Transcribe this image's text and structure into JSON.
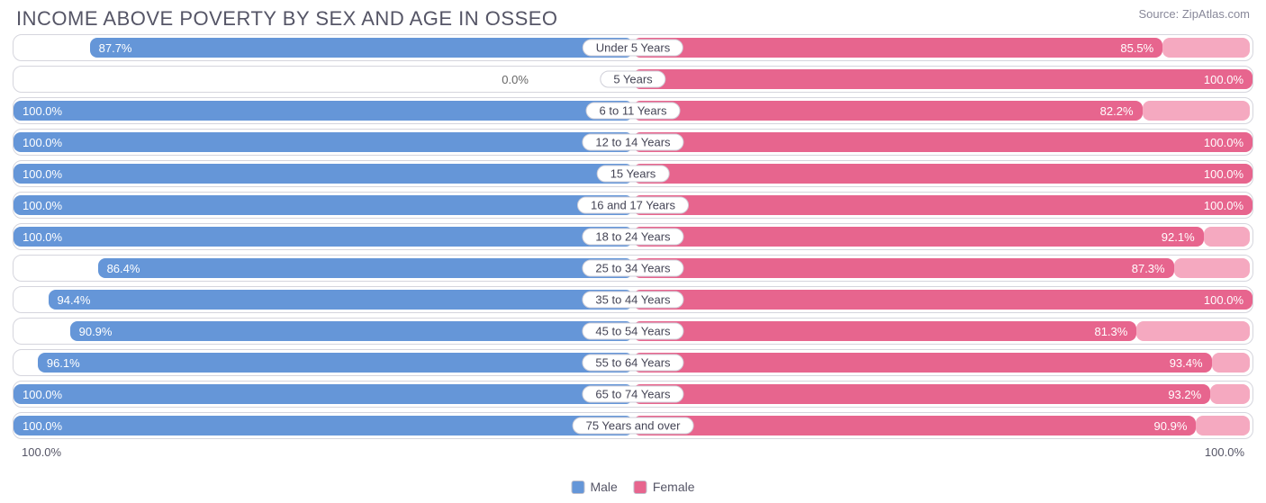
{
  "title": "INCOME ABOVE POVERTY BY SEX AND AGE IN OSSEO",
  "source": "Source: ZipAtlas.com",
  "colors": {
    "male": "#6596d8",
    "male_light": "#a9c6eb",
    "female": "#e7658e",
    "female_light": "#f5a9c0",
    "border": "#d5d5dd",
    "text": "#555566"
  },
  "axis": {
    "left": "100.0%",
    "right": "100.0%"
  },
  "legend": {
    "male": "Male",
    "female": "Female"
  },
  "rows": [
    {
      "label": "Under 5 Years",
      "male": 87.7,
      "male_txt": "87.7%",
      "female": 85.5,
      "female_txt": "85.5%"
    },
    {
      "label": "5 Years",
      "male": 0.0,
      "male_txt": "0.0%",
      "female": 100.0,
      "female_txt": "100.0%",
      "male_light": true
    },
    {
      "label": "6 to 11 Years",
      "male": 100.0,
      "male_txt": "100.0%",
      "female": 82.2,
      "female_txt": "82.2%"
    },
    {
      "label": "12 to 14 Years",
      "male": 100.0,
      "male_txt": "100.0%",
      "female": 100.0,
      "female_txt": "100.0%"
    },
    {
      "label": "15 Years",
      "male": 100.0,
      "male_txt": "100.0%",
      "female": 100.0,
      "female_txt": "100.0%"
    },
    {
      "label": "16 and 17 Years",
      "male": 100.0,
      "male_txt": "100.0%",
      "female": 100.0,
      "female_txt": "100.0%"
    },
    {
      "label": "18 to 24 Years",
      "male": 100.0,
      "male_txt": "100.0%",
      "female": 92.1,
      "female_txt": "92.1%"
    },
    {
      "label": "25 to 34 Years",
      "male": 86.4,
      "male_txt": "86.4%",
      "female": 87.3,
      "female_txt": "87.3%"
    },
    {
      "label": "35 to 44 Years",
      "male": 94.4,
      "male_txt": "94.4%",
      "female": 100.0,
      "female_txt": "100.0%"
    },
    {
      "label": "45 to 54 Years",
      "male": 90.9,
      "male_txt": "90.9%",
      "female": 81.3,
      "female_txt": "81.3%"
    },
    {
      "label": "55 to 64 Years",
      "male": 96.1,
      "male_txt": "96.1%",
      "female": 93.4,
      "female_txt": "93.4%"
    },
    {
      "label": "65 to 74 Years",
      "male": 100.0,
      "male_txt": "100.0%",
      "female": 93.2,
      "female_txt": "93.2%"
    },
    {
      "label": "75 Years and over",
      "male": 100.0,
      "male_txt": "100.0%",
      "female": 90.9,
      "female_txt": "90.9%"
    }
  ]
}
